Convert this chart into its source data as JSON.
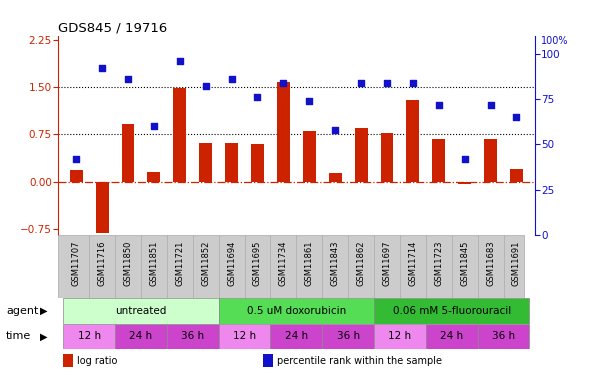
{
  "title": "GDS845 / 19716",
  "samples": [
    "GSM11707",
    "GSM11716",
    "GSM11850",
    "GSM11851",
    "GSM11721",
    "GSM11852",
    "GSM11694",
    "GSM11695",
    "GSM11734",
    "GSM11861",
    "GSM11843",
    "GSM11862",
    "GSM11697",
    "GSM11714",
    "GSM11723",
    "GSM11845",
    "GSM11683",
    "GSM11691"
  ],
  "log_ratio": [
    0.18,
    -0.82,
    0.92,
    0.15,
    1.48,
    0.62,
    0.62,
    0.6,
    1.58,
    0.8,
    0.13,
    0.86,
    0.78,
    1.3,
    0.68,
    -0.03,
    0.68,
    0.2
  ],
  "percentile_rank": [
    42,
    92,
    86,
    60,
    96,
    82,
    86,
    76,
    84,
    74,
    58,
    84,
    84,
    84,
    72,
    42,
    72,
    65
  ],
  "bar_color": "#cc2200",
  "dot_color": "#1111cc",
  "zero_line_color": "#cc2200",
  "grid_line_color": "#000000",
  "ylim_left": [
    -0.85,
    2.32
  ],
  "ylim_right": [
    0,
    110
  ],
  "yticks_left": [
    -0.75,
    0,
    0.75,
    1.5,
    2.25
  ],
  "yticks_right": [
    0,
    25,
    50,
    75,
    100
  ],
  "hlines": [
    0.75,
    1.5
  ],
  "agent_groups": [
    {
      "label": "untreated",
      "start": 0,
      "end": 6,
      "color": "#ccffcc"
    },
    {
      "label": "0.5 uM doxorubicin",
      "start": 6,
      "end": 12,
      "color": "#55dd55"
    },
    {
      "label": "0.06 mM 5-fluorouracil",
      "start": 12,
      "end": 18,
      "color": "#33bb33"
    }
  ],
  "time_group_defs": [
    {
      "start": 0,
      "end": 2,
      "label": "12 h",
      "color": "#ee88ee"
    },
    {
      "start": 2,
      "end": 4,
      "label": "24 h",
      "color": "#cc44cc"
    },
    {
      "start": 4,
      "end": 6,
      "label": "36 h",
      "color": "#cc44cc"
    },
    {
      "start": 6,
      "end": 8,
      "label": "12 h",
      "color": "#ee88ee"
    },
    {
      "start": 8,
      "end": 10,
      "label": "24 h",
      "color": "#cc44cc"
    },
    {
      "start": 10,
      "end": 12,
      "label": "36 h",
      "color": "#cc44cc"
    },
    {
      "start": 12,
      "end": 14,
      "label": "12 h",
      "color": "#ee88ee"
    },
    {
      "start": 14,
      "end": 16,
      "label": "24 h",
      "color": "#cc44cc"
    },
    {
      "start": 16,
      "end": 18,
      "label": "36 h",
      "color": "#cc44cc"
    }
  ],
  "legend_items": [
    {
      "label": "log ratio",
      "color": "#cc2200"
    },
    {
      "label": "percentile rank within the sample",
      "color": "#1111cc"
    }
  ],
  "background_color": "#ffffff",
  "plot_bg_color": "#ffffff",
  "left_axis_color": "#cc2200",
  "right_axis_color": "#1111cc",
  "xtick_bg_color": "#cccccc",
  "title_color": "#000000"
}
